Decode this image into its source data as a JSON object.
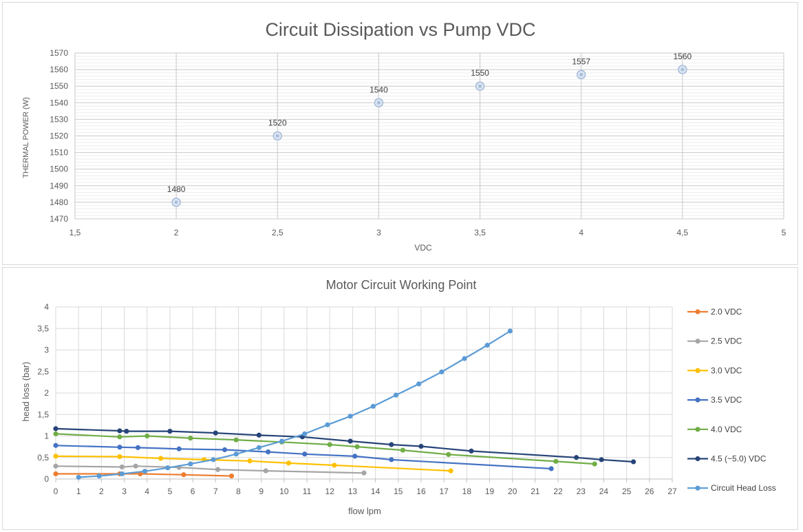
{
  "chart_data": [
    {
      "type": "scatter",
      "title": "Circuit Dissipation vs Pump VDC",
      "xlabel": "VDC",
      "ylabel": "THERMAL POWER (W)",
      "xlim": [
        1.5,
        5
      ],
      "ylim": [
        1470,
        1570
      ],
      "x_ticks": [
        "1,5",
        "2",
        "2,5",
        "3",
        "3,5",
        "4",
        "4,5",
        "5"
      ],
      "y_ticks": [
        "1470",
        "1480",
        "1490",
        "1500",
        "1510",
        "1520",
        "1530",
        "1540",
        "1550",
        "1560",
        "1570"
      ],
      "grid": true,
      "marker_color": "#a9bedb",
      "points": [
        {
          "x": 2.0,
          "y": 1480,
          "label": "1480"
        },
        {
          "x": 2.5,
          "y": 1520,
          "label": "1520"
        },
        {
          "x": 3.0,
          "y": 1540,
          "label": "1540"
        },
        {
          "x": 3.5,
          "y": 1550,
          "label": "1550"
        },
        {
          "x": 4.0,
          "y": 1557,
          "label": "1557"
        },
        {
          "x": 4.5,
          "y": 1560,
          "label": "1560"
        }
      ]
    },
    {
      "type": "line",
      "title": "Motor Circuit Working Point",
      "xlabel": "flow lpm",
      "ylabel": "head loss (bar)",
      "xlim": [
        0,
        27
      ],
      "ylim": [
        0,
        4
      ],
      "x_ticks": [
        "0",
        "1",
        "2",
        "3",
        "4",
        "5",
        "6",
        "7",
        "8",
        "9",
        "10",
        "11",
        "12",
        "13",
        "14",
        "15",
        "16",
        "17",
        "18",
        "19",
        "20",
        "21",
        "22",
        "23",
        "24",
        "25",
        "26",
        "27"
      ],
      "y_ticks": [
        "0",
        "0,5",
        "1",
        "1,5",
        "2",
        "2,5",
        "3",
        "3,5",
        "4"
      ],
      "grid": true,
      "legend_position": "right",
      "series": [
        {
          "name": "2.0 VDC",
          "color": "#ed7d31",
          "points": [
            [
              0,
              0.12
            ],
            [
              2.8,
              0.12
            ],
            [
              3.7,
              0.12
            ],
            [
              5.6,
              0.1
            ],
            [
              7.7,
              0.07
            ]
          ]
        },
        {
          "name": "2.5 VDC",
          "color": "#a5a5a5",
          "points": [
            [
              0,
              0.3
            ],
            [
              2.9,
              0.28
            ],
            [
              3.5,
              0.3
            ],
            [
              5.4,
              0.27
            ],
            [
              7.1,
              0.22
            ],
            [
              9.2,
              0.19
            ],
            [
              13.5,
              0.14
            ]
          ]
        },
        {
          "name": "3.0 VDC",
          "color": "#ffc000",
          "points": [
            [
              0,
              0.53
            ],
            [
              2.8,
              0.52
            ],
            [
              4.6,
              0.48
            ],
            [
              6.5,
              0.45
            ],
            [
              8.5,
              0.42
            ],
            [
              10.2,
              0.37
            ],
            [
              12.2,
              0.32
            ],
            [
              17.3,
              0.19
            ]
          ]
        },
        {
          "name": "3.5 VDC",
          "color": "#4472c4",
          "points": [
            [
              0,
              0.78
            ],
            [
              2.8,
              0.74
            ],
            [
              3.6,
              0.73
            ],
            [
              5.4,
              0.7
            ],
            [
              7.4,
              0.68
            ],
            [
              9.3,
              0.63
            ],
            [
              10.9,
              0.58
            ],
            [
              13.1,
              0.53
            ],
            [
              14.7,
              0.45
            ],
            [
              21.7,
              0.24
            ]
          ]
        },
        {
          "name": "4.0 VDC",
          "color": "#70ad47",
          "points": [
            [
              0,
              1.05
            ],
            [
              2.8,
              0.98
            ],
            [
              4.0,
              1.0
            ],
            [
              5.9,
              0.95
            ],
            [
              7.9,
              0.91
            ],
            [
              9.9,
              0.86
            ],
            [
              12.0,
              0.8
            ],
            [
              13.2,
              0.75
            ],
            [
              15.2,
              0.67
            ],
            [
              17.2,
              0.57
            ],
            [
              21.9,
              0.41
            ],
            [
              23.6,
              0.35
            ]
          ]
        },
        {
          "name": "4.5 (~5.0) VDC",
          "color": "#264478",
          "points": [
            [
              0,
              1.17
            ],
            [
              2.8,
              1.12
            ],
            [
              3.1,
              1.11
            ],
            [
              5.0,
              1.11
            ],
            [
              7.0,
              1.07
            ],
            [
              8.9,
              1.02
            ],
            [
              10.8,
              0.98
            ],
            [
              12.9,
              0.88
            ],
            [
              14.7,
              0.8
            ],
            [
              16.0,
              0.76
            ],
            [
              18.2,
              0.65
            ],
            [
              22.8,
              0.5
            ],
            [
              23.9,
              0.45
            ],
            [
              25.3,
              0.4
            ]
          ]
        },
        {
          "name": "Circuit Head Loss",
          "color": "#5b9bd5",
          "points": [
            [
              1.0,
              0.04
            ],
            [
              1.9,
              0.07
            ],
            [
              2.9,
              0.12
            ],
            [
              3.9,
              0.18
            ],
            [
              4.9,
              0.26
            ],
            [
              5.9,
              0.35
            ],
            [
              6.9,
              0.45
            ],
            [
              7.9,
              0.58
            ],
            [
              8.9,
              0.73
            ],
            [
              9.9,
              0.88
            ],
            [
              10.9,
              1.05
            ],
            [
              11.9,
              1.26
            ],
            [
              12.9,
              1.46
            ],
            [
              13.9,
              1.69
            ],
            [
              14.9,
              1.95
            ],
            [
              15.9,
              2.21
            ],
            [
              16.9,
              2.49
            ],
            [
              17.9,
              2.8
            ],
            [
              18.9,
              3.11
            ],
            [
              19.9,
              3.44
            ]
          ]
        }
      ]
    }
  ]
}
